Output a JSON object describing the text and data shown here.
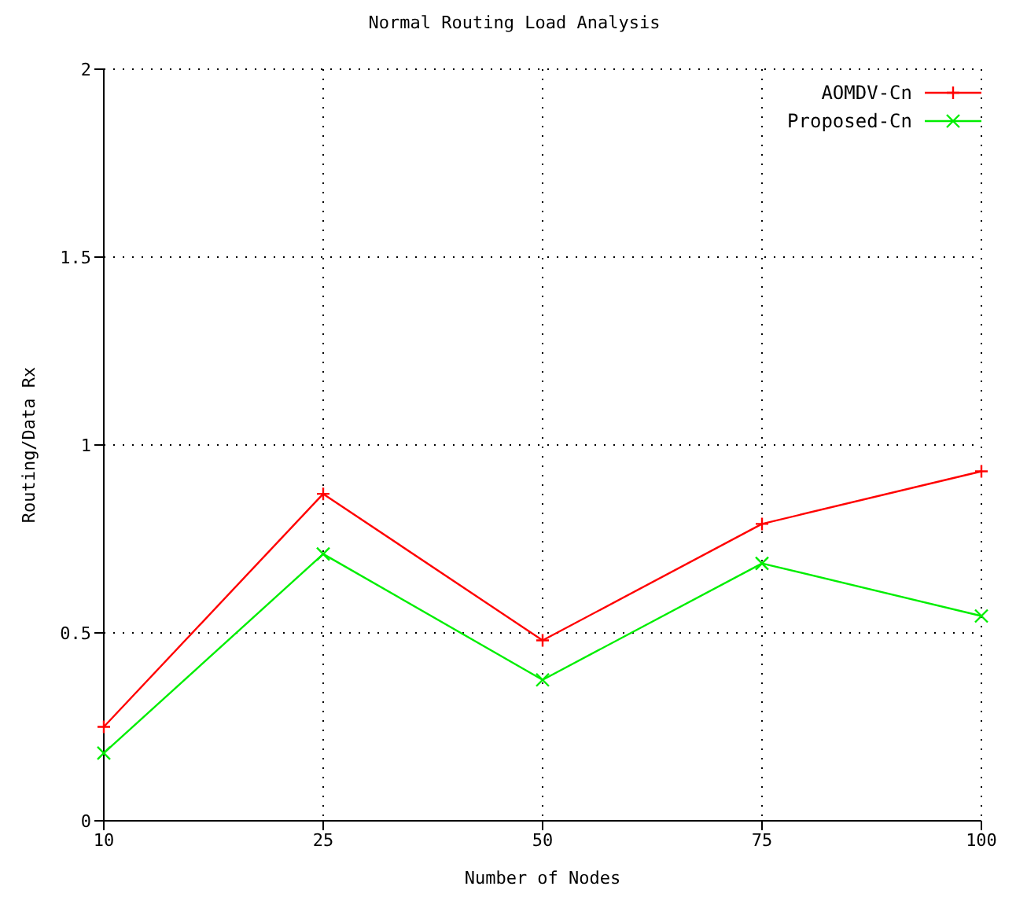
{
  "chart_data": {
    "type": "line",
    "title": "Normal Routing Load Analysis",
    "xlabel": "Number of Nodes",
    "ylabel": "Routing/Data Rx",
    "categories": [
      "10",
      "25",
      "50",
      "75",
      "100"
    ],
    "series": [
      {
        "name": "AOMDV-Cn",
        "color": "#ff0000",
        "values": [
          0.25,
          0.87,
          0.48,
          0.79,
          0.93
        ]
      },
      {
        "name": "Proposed-Cn",
        "color": "#00ee00",
        "values": [
          0.18,
          0.71,
          0.375,
          0.685,
          0.545
        ]
      }
    ],
    "ylim": [
      0,
      2
    ],
    "yticks": [
      0,
      {
        "value": 0.5,
        "label": "0.5"
      },
      1,
      {
        "value": 1.5,
        "label": "1.5"
      },
      2
    ],
    "grid": true,
    "legend": "top right",
    "marker": "cross",
    "line_style": "solid"
  }
}
